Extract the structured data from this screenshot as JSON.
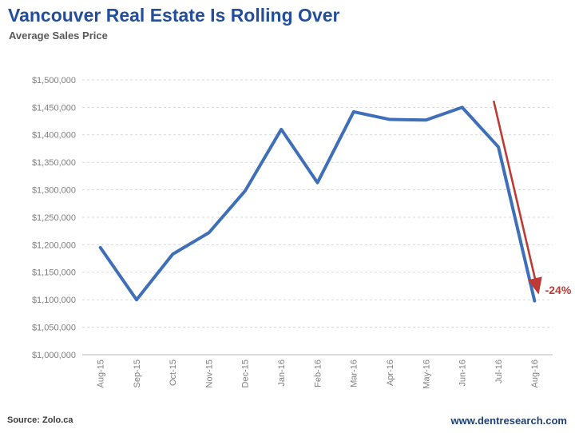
{
  "header": {
    "title": "Vancouver Real Estate Is Rolling Over",
    "subtitle": "Average Sales Price"
  },
  "footer": {
    "source": "Source: Zolo.ca",
    "website": "www.dentresearch.com"
  },
  "colors": {
    "title": "#234e9c",
    "subtitle": "#595959",
    "line": "#3e6fb8",
    "annotation": "#be3a34",
    "gridline": "#d9d9d9",
    "axis_line": "#c6c6c6",
    "tick_label": "#7f7f7f"
  },
  "chart_data": {
    "type": "line",
    "title": "Vancouver Real Estate Is Rolling Over",
    "subtitle": "Average Sales Price",
    "xlabel": "",
    "ylabel": "",
    "categories": [
      "Aug-15",
      "Sep-15",
      "Oct-15",
      "Nov-15",
      "Dec-15",
      "Jan-16",
      "Feb-16",
      "Mar-16",
      "Apr-16",
      "May-16",
      "Jun-16",
      "Jul-16",
      "Aug-16"
    ],
    "series": [
      {
        "name": "Average Sales Price",
        "values": [
          1195000,
          1100000,
          1183000,
          1222000,
          1298000,
          1410000,
          1313000,
          1442000,
          1428000,
          1427000,
          1450000,
          1378000,
          1098000
        ]
      }
    ],
    "ylim": [
      1000000,
      1500000
    ],
    "grid": "horizontal-dashed",
    "legend": "none",
    "y_ticks": [
      {
        "value": 1500000,
        "label": "$1,500,000"
      },
      {
        "value": 1450000,
        "label": "$1,450,000"
      },
      {
        "value": 1400000,
        "label": "$1,400,000"
      },
      {
        "value": 1350000,
        "label": "$1,350,000"
      },
      {
        "value": 1300000,
        "label": "$1,300,000"
      },
      {
        "value": 1250000,
        "label": "$1,250,000"
      },
      {
        "value": 1200000,
        "label": "$1,200,000"
      },
      {
        "value": 1150000,
        "label": "$1,150,000"
      },
      {
        "value": 1100000,
        "label": "$1,100,000"
      },
      {
        "value": 1050000,
        "label": "$1,050,000"
      },
      {
        "value": 1000000,
        "label": "$1,000,000"
      }
    ],
    "annotation": {
      "label": "-24%",
      "x1_index": 10.87,
      "y1_value": 1462000,
      "x2_index": 12.05,
      "y2_value": 1128000
    }
  }
}
